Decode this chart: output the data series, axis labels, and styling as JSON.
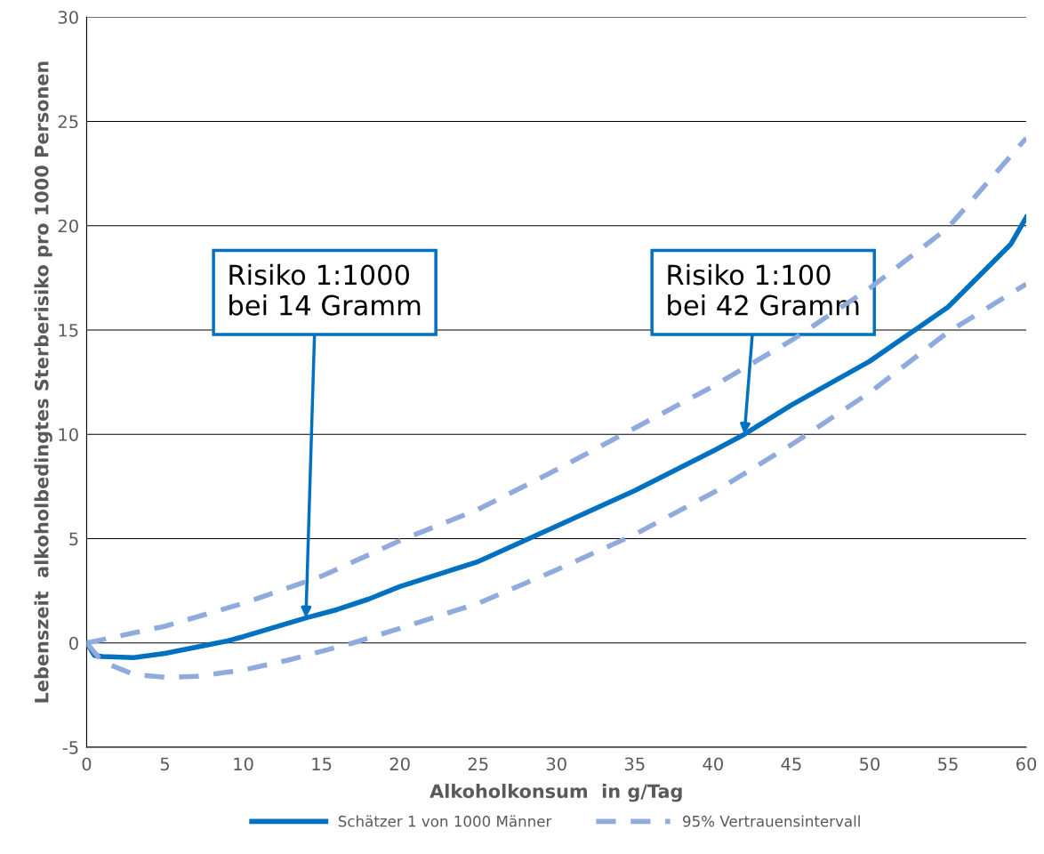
{
  "chart_data": {
    "type": "line",
    "xlabel": "Alkoholkonsum  in g/Tag",
    "ylabel": "Lebenszeit  alkoholbedingtes Sterberisiko pro 1000 Personen",
    "xlim": [
      0,
      60
    ],
    "xticks": [
      0,
      5,
      10,
      15,
      20,
      25,
      30,
      35,
      40,
      45,
      50,
      55,
      60
    ],
    "ylim": [
      -5,
      30
    ],
    "yticks": [
      -5,
      0,
      5,
      10,
      15,
      20,
      25,
      30
    ],
    "grid": "y",
    "legend": "bottom",
    "series": [
      {
        "name": "Schätzer 1 von 1000 Männer",
        "color": "#0070c0",
        "line_style": "solid",
        "x": [
          0,
          0.5,
          1,
          3,
          5,
          7,
          9,
          10,
          12,
          14,
          16,
          18,
          20,
          25,
          30,
          35,
          40,
          42,
          45,
          50,
          55,
          59,
          60
        ],
        "values": [
          0,
          -0.6,
          -0.65,
          -0.7,
          -0.5,
          -0.2,
          0.1,
          0.3,
          0.75,
          1.2,
          1.6,
          2.1,
          2.7,
          3.9,
          5.6,
          7.3,
          9.2,
          10,
          11.4,
          13.5,
          16.1,
          19.1,
          20.4
        ]
      },
      {
        "name": "95% Vertrauensintervall",
        "color": "#8faadc",
        "line_style": "dashed",
        "x": [
          0,
          5,
          10,
          15,
          20,
          25,
          30,
          35,
          40,
          45,
          50,
          55,
          60
        ],
        "values": [
          0,
          0.8,
          1.9,
          3.2,
          4.9,
          6.4,
          8.3,
          10.3,
          12.3,
          14.5,
          17,
          19.9,
          24.2
        ]
      },
      {
        "color": "#8faadc",
        "line_style": "dashed",
        "x": [
          0,
          1,
          3,
          5,
          7,
          10,
          13,
          15,
          17,
          20,
          25,
          30,
          35,
          40,
          45,
          50,
          55,
          60
        ],
        "values": [
          0,
          -0.9,
          -1.5,
          -1.65,
          -1.6,
          -1.3,
          -0.8,
          -0.4,
          0,
          0.7,
          1.9,
          3.5,
          5.2,
          7.2,
          9.5,
          12,
          14.9,
          17.2
        ]
      }
    ],
    "annotations": [
      {
        "text": "Risiko 1:1000\nbei 14 Gramm",
        "x": 14,
        "y": 1.2
      },
      {
        "text": "Risiko 1:100\nbei 42 Gramm",
        "x": 42,
        "y": 10
      }
    ]
  }
}
